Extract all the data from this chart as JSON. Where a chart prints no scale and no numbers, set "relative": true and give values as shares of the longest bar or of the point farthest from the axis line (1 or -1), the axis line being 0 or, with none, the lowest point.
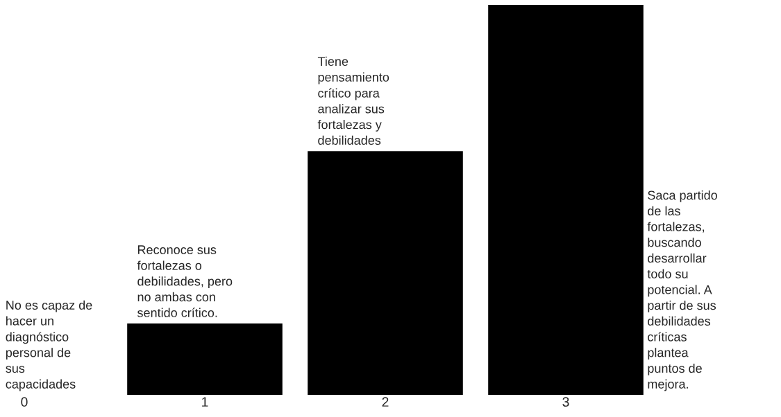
{
  "chart_data": {
    "type": "bar",
    "relative": true,
    "categories": [
      "0",
      "1",
      "2",
      "3"
    ],
    "values": [
      0,
      0.183,
      0.625,
      1
    ],
    "color": "#000000",
    "grid": false,
    "annotations": [
      {
        "text": "No es capaz de\nhacer un\ndiagnóstico\npersonal de\nsus\ncapacidades",
        "x": "0",
        "y": 0
      },
      {
        "text": "Reconoce sus\nfortalezas o\ndebilidades, pero\nno ambas con\nsentido crítico.",
        "x": "1",
        "y": 0.183
      },
      {
        "text": "Tiene\npensamiento\ncrítico para\nanalizar sus\nfortalezas y\ndebilidades",
        "x": "2",
        "y": 0.625
      },
      "Saca partido\nde las\nfortalezas,\nbuscando\ndesarrollar\ntodo su\npotencial. A\npartir de sus\ndebilidades\ncríticas\nplantea\npuntos de\nmejora."
    ]
  }
}
